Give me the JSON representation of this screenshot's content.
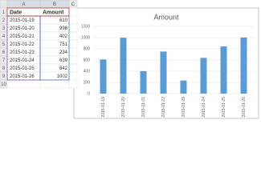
{
  "sheet": {
    "columns": [
      "A",
      "B",
      "C"
    ],
    "row_numbers": [
      1,
      2,
      3,
      4,
      5,
      6,
      7,
      8,
      9,
      10
    ],
    "rows": [
      [
        "Date",
        "Amount"
      ],
      [
        "2015-01-19",
        610
      ],
      [
        "2015-01-20",
        998
      ],
      [
        "2015-01-21",
        402
      ],
      [
        "2015-01-22",
        751
      ],
      [
        "2015-01-23",
        234
      ],
      [
        "2015-01-24",
        639
      ],
      [
        "2015-01-25",
        842
      ],
      [
        "2015-01-26",
        1002
      ]
    ]
  },
  "chart_data": {
    "type": "bar",
    "title": "Amount",
    "categories": [
      "2015-01-19",
      "2015-01-20",
      "2015-01-21",
      "2015-01-22",
      "2015-01-23",
      "2015-01-24",
      "2015-01-25",
      "2015-01-26"
    ],
    "values": [
      610,
      998,
      402,
      751,
      234,
      639,
      842,
      1002
    ],
    "color": "#5b9bd5",
    "ylim": [
      0,
      1200
    ],
    "yticks": [
      0,
      200,
      400,
      600,
      800,
      1000,
      1200
    ],
    "grid": true
  }
}
